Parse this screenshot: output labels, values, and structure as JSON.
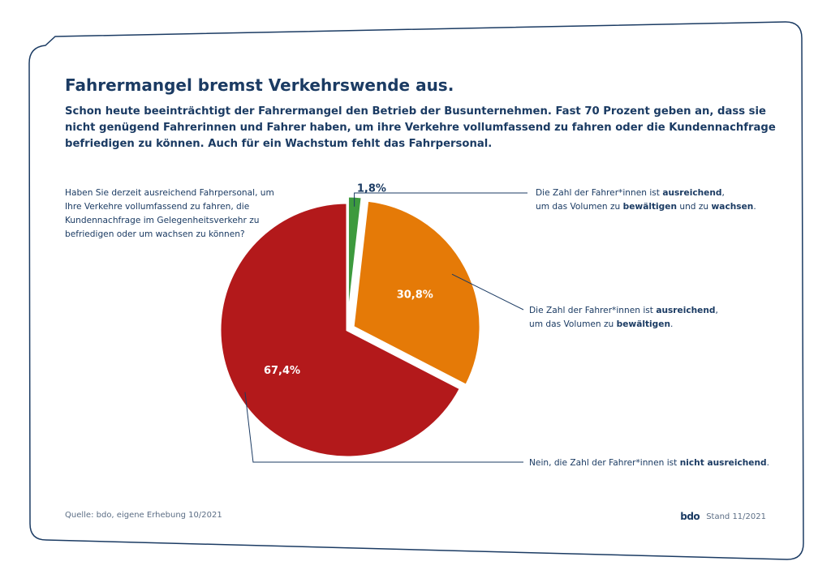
{
  "title": "Fahrermangel bremst Verkehrswende aus.",
  "subtitle": "Schon heute beeinträchtigt der Fahrermangel den Betrieb der Busunternehmen. Fast 70 Prozent geben an, dass sie nicht genügend Fahrerinnen und Fahrer haben, um ihre Verkehre vollumfassend zu fahren oder die Kundennachfrage befriedigen zu können. Auch für ein Wachstum fehlt das Fahrpersonal.",
  "question": "Haben Sie derzeit ausreichend Fahrpersonal, um Ihre Verkehre vollumfassend zu fahren, die Kundennachfrage im Gelegenheitsverkehr zu befriedigen oder um wachsen zu können?",
  "labels": [
    {
      "line1_a": "Die Zahl der Fahrer*innen ist ",
      "line1_b": "ausreichend",
      "line1_c": ",",
      "line2_a": "um das Volumen zu ",
      "line2_b": "bewältigen",
      "line2_c": " und zu ",
      "line2_d": "wachsen",
      "line2_e": "."
    },
    {
      "line1_a": "Die Zahl der Fahrer*innen ist ",
      "line1_b": "ausreichend",
      "line1_c": ",",
      "line2_a": "um das Volumen zu ",
      "line2_b": "bewältigen",
      "line2_c": "."
    },
    {
      "line1_a": "Nein, die Zahl der Fahrer*innen ist ",
      "line1_b": "nicht ausreichend",
      "line1_c": "."
    }
  ],
  "source": "Quelle: bdo, eigene Erhebung 10/2021",
  "logo": "bdo",
  "stand": "Stand 11/2021",
  "colors": {
    "text": "#1b3b63",
    "border": "#1b3b63",
    "green": "#3d9a3e",
    "orange": "#e57a07",
    "red": "#b3191b"
  },
  "chart_data": {
    "type": "pie",
    "slices": [
      {
        "value": 1.8,
        "label": "1,8%",
        "color": "#3d9a3e",
        "exploded": true
      },
      {
        "value": 30.8,
        "label": "30,8%",
        "color": "#e57a07",
        "exploded": true
      },
      {
        "value": 67.4,
        "label": "67,4%",
        "color": "#b3191b",
        "exploded": false
      }
    ]
  }
}
